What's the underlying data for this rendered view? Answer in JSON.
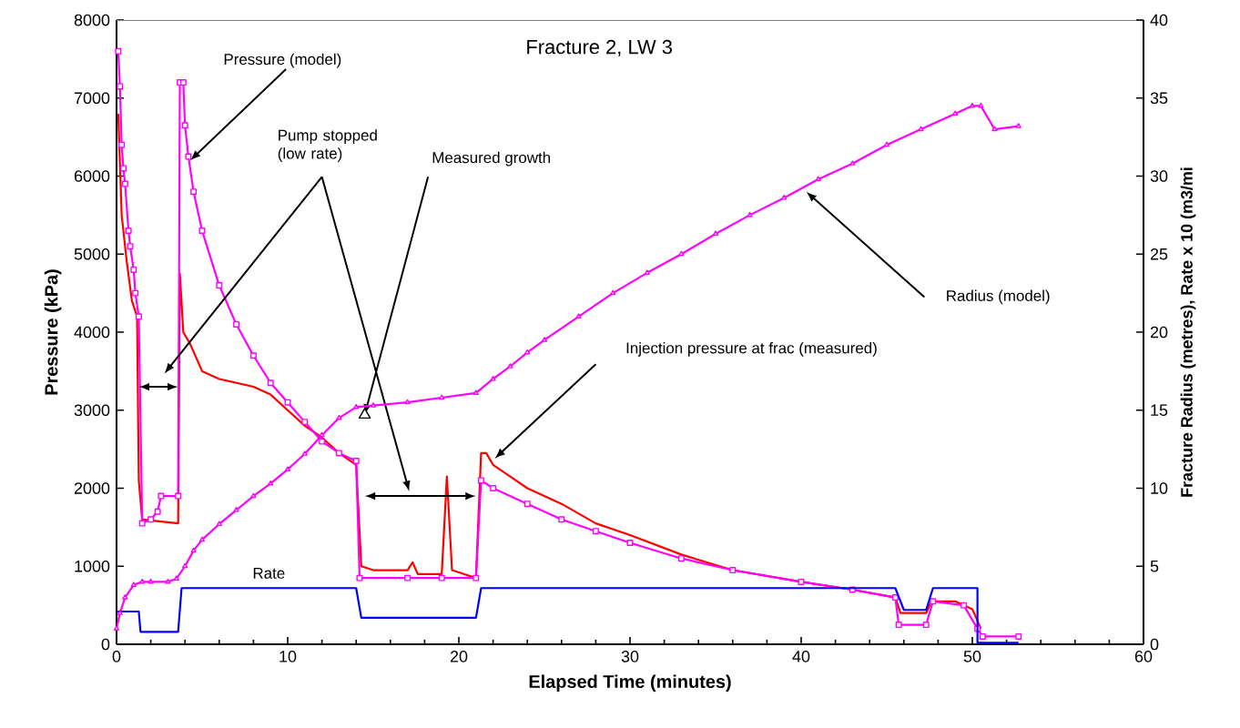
{
  "chart_data": {
    "type": "line",
    "title": "Fracture 2, LW 3",
    "xlabel": "Elapsed Time (minutes)",
    "ylabel": "Pressure (kPa)",
    "y2label": "Fracture Radius (metres), Rate x 10 (m3/mi",
    "xlim": [
      0,
      60
    ],
    "xticks": [
      0,
      10,
      20,
      30,
      40,
      50,
      60
    ],
    "ylim": [
      0,
      8000
    ],
    "yticks": [
      0,
      1000,
      2000,
      3000,
      4000,
      5000,
      6000,
      7000,
      8000
    ],
    "y2lim": [
      0,
      40
    ],
    "y2ticks": [
      0,
      5,
      10,
      15,
      20,
      25,
      30,
      35,
      40
    ],
    "grid": false,
    "series": [
      {
        "color": "#ff0000",
        "marker": "none",
        "x": [
          0.1,
          0.3,
          0.6,
          0.9,
          1.2,
          1.3,
          1.5,
          3.6,
          3.7,
          3.9,
          4.3,
          5,
          6,
          7,
          8,
          9,
          10,
          11,
          12,
          13,
          14,
          14.3,
          15,
          17,
          17.3,
          17.6,
          19,
          19.3,
          19.6,
          21,
          21.3,
          21.6,
          22,
          23,
          24,
          26,
          28,
          30,
          33,
          36,
          40,
          43,
          45.5,
          45.8,
          47.3,
          47.6,
          49,
          50,
          50.5
        ],
        "values": [
          6800,
          5500,
          4900,
          4400,
          4200,
          2100,
          1600,
          1550,
          4750,
          4000,
          3850,
          3500,
          3400,
          3350,
          3300,
          3200,
          3000,
          2800,
          2650,
          2450,
          2300,
          1000,
          950,
          950,
          1050,
          900,
          900,
          2150,
          950,
          850,
          2450,
          2450,
          2300,
          2150,
          2000,
          1800,
          1550,
          1400,
          1150,
          950,
          800,
          700,
          600,
          400,
          400,
          550,
          550,
          450,
          200
        ]
      },
      {
        "name": "Pressure (model)",
        "color": "#ff00ff",
        "marker": "square",
        "x": [
          0.1,
          0.2,
          0.3,
          0.4,
          0.5,
          0.7,
          0.8,
          1,
          1.1,
          1.3,
          1.5,
          2,
          2.4,
          2.6,
          3.6,
          3.7,
          3.9,
          4,
          4.2,
          4.5,
          5,
          6,
          7,
          8,
          9,
          10,
          11,
          12,
          13,
          14,
          14.2,
          17,
          19,
          21,
          21.3,
          22,
          24,
          26,
          28,
          30,
          33,
          36,
          40,
          43,
          45.5,
          45.7,
          47.3,
          47.7,
          49.5,
          50.3,
          50.6,
          52.7
        ],
        "values": [
          7600,
          7150,
          6400,
          6100,
          5900,
          5300,
          5100,
          4800,
          4500,
          4200,
          1550,
          1600,
          1700,
          1900,
          1900,
          7200,
          7200,
          6650,
          6250,
          5800,
          5300,
          4600,
          4100,
          3700,
          3350,
          3100,
          2850,
          2600,
          2450,
          2350,
          850,
          850,
          850,
          850,
          2100,
          2000,
          1800,
          1600,
          1450,
          1300,
          1100,
          950,
          800,
          700,
          600,
          250,
          250,
          550,
          500,
          200,
          100,
          100
        ]
      },
      {
        "color": "#ff00ff",
        "marker": "triangle",
        "axis": "y2",
        "x": [
          0,
          0.2,
          0.5,
          1,
          1.5,
          2,
          3,
          3.5,
          4,
          4.5,
          5,
          6,
          7,
          8,
          9,
          10,
          11,
          12,
          13,
          14,
          15,
          17,
          19,
          21,
          22,
          23,
          24,
          25,
          27,
          29,
          31,
          33,
          35,
          37,
          39,
          41,
          43,
          45,
          47,
          49,
          50,
          50.5,
          51.3,
          52.7
        ],
        "values": [
          1,
          2,
          3,
          3.8,
          4,
          4,
          4,
          4.2,
          5,
          6,
          6.7,
          7.7,
          8.6,
          9.5,
          10.3,
          11.2,
          12.2,
          13.4,
          14.5,
          15.2,
          15.3,
          15.5,
          15.8,
          16.1,
          17,
          17.8,
          18.7,
          19.5,
          21,
          22.5,
          23.8,
          25,
          26.3,
          27.5,
          28.6,
          29.8,
          30.8,
          32,
          33,
          34,
          34.5,
          34.5,
          33,
          33.2
        ]
      },
      {
        "name": "Rate",
        "color": "#0000ff",
        "marker": "none",
        "axis": "y2",
        "x": [
          0,
          1.3,
          1.4,
          3.6,
          3.8,
          14,
          14.3,
          21,
          21.3,
          45.5,
          46,
          47.3,
          47.7,
          50.3,
          50.3,
          52.7
        ],
        "values": [
          2.1,
          2.1,
          0.8,
          0.8,
          3.6,
          3.6,
          1.7,
          1.7,
          3.6,
          3.6,
          2.2,
          2.2,
          3.6,
          3.6,
          0.1,
          0.1
        ]
      },
      {
        "type": "scatter",
        "color": "#000000",
        "marker": "triangle",
        "axis": "y2",
        "x": [
          14.5
        ],
        "values": [
          14.7
        ]
      }
    ],
    "annotations": [
      "Pump stopped (low rate)",
      {
        "text": "Measured growth",
        "x": 14.5,
        "y": 2940
      },
      "Injection pressure at frac (measured)",
      "Radius (model)"
    ]
  }
}
